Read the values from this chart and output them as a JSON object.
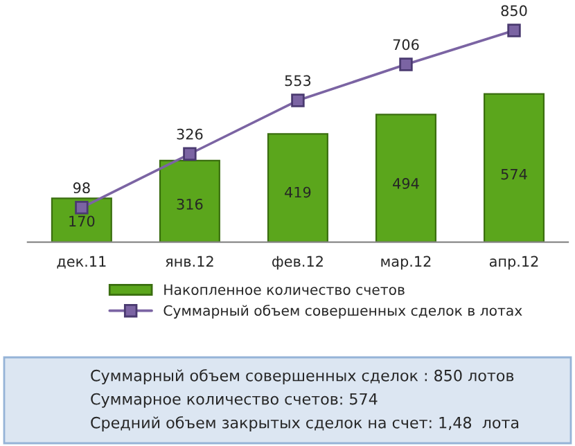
{
  "chart_data": {
    "type": "bar",
    "categories": [
      "дек.11",
      "янв.12",
      "фев.12",
      "мар.12",
      "апр.12"
    ],
    "series": [
      {
        "name": "Накопленное количество счетов",
        "axis": "y2",
        "color": "#5ba61c",
        "values": [
          170,
          316,
          419,
          494,
          574
        ]
      },
      {
        "name": "Суммарный объем совершенных сделок в лотах",
        "type": "line",
        "color": "#7b64a3",
        "values": [
          98,
          326,
          553,
          706,
          850
        ]
      }
    ],
    "tick_labels": "x",
    "data_labels": true,
    "legend": "bottom",
    "grid": false,
    "marker": "square",
    "line_style": "solid",
    "annotations": [
      "Суммарный объем совершенных сделок : 850 лотов",
      "Суммарное количество счетов: 574",
      "Средний объем закрытых сделок на счет: 1,48  лота"
    ]
  }
}
